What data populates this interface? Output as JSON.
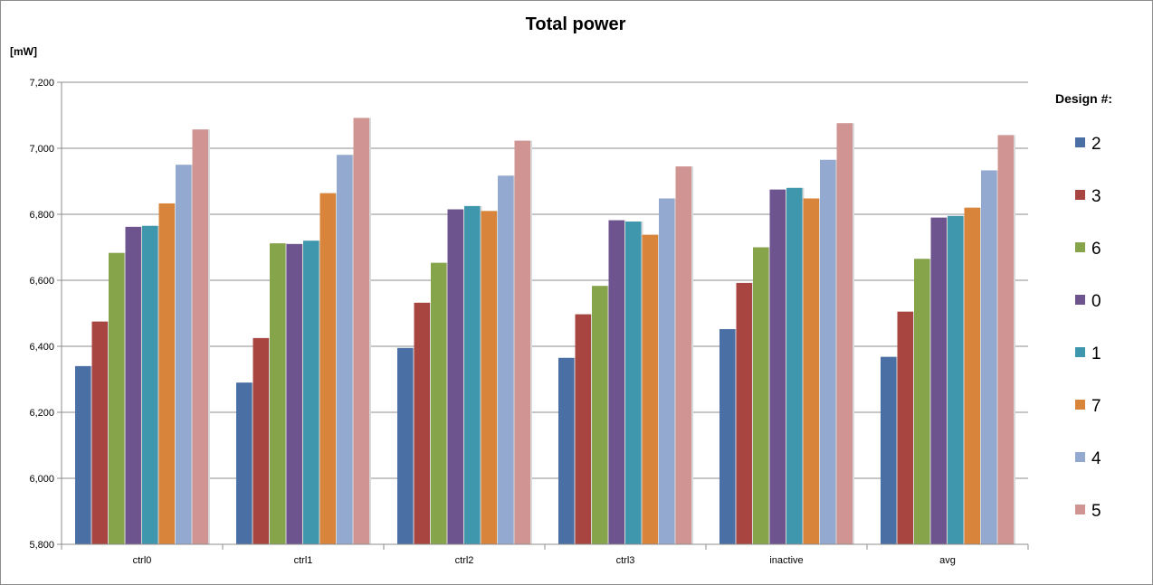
{
  "chart_data": {
    "type": "bar",
    "title": "Total power",
    "ylabel": "[mW]",
    "ylim": [
      5800,
      7200
    ],
    "ytick_values": [
      5800,
      6000,
      6200,
      6400,
      6600,
      6800,
      7000,
      7200
    ],
    "ytick_labels": [
      "5,800",
      "6,000",
      "6,200",
      "6,400",
      "6,600",
      "6,800",
      "7,000",
      "7,200"
    ],
    "grid": true,
    "legend_title": "Design #:",
    "legend_position": "right",
    "categories": [
      "ctrl0",
      "ctrl1",
      "ctrl2",
      "ctrl3",
      "inactive",
      "avg"
    ],
    "series": [
      {
        "name": "2",
        "color": "#4a6fa5",
        "values": [
          6340,
          6290,
          6395,
          6365,
          6452,
          6368
        ]
      },
      {
        "name": "3",
        "color": "#a84541",
        "values": [
          6475,
          6425,
          6532,
          6497,
          6592,
          6505
        ]
      },
      {
        "name": "6",
        "color": "#86a44a",
        "values": [
          6683,
          6712,
          6653,
          6583,
          6700,
          6665
        ]
      },
      {
        "name": "0",
        "color": "#6d548e",
        "values": [
          6762,
          6710,
          6815,
          6782,
          6875,
          6790
        ]
      },
      {
        "name": "1",
        "color": "#3f97ae",
        "values": [
          6765,
          6720,
          6825,
          6778,
          6880,
          6795
        ]
      },
      {
        "name": "7",
        "color": "#d9843b",
        "values": [
          6833,
          6864,
          6810,
          6738,
          6848,
          6820
        ]
      },
      {
        "name": "4",
        "color": "#93a9cf",
        "values": [
          6950,
          6980,
          6917,
          6848,
          6965,
          6933
        ]
      },
      {
        "name": "5",
        "color": "#d09493",
        "values": [
          7057,
          7092,
          7023,
          6945,
          7076,
          7040
        ]
      }
    ]
  }
}
